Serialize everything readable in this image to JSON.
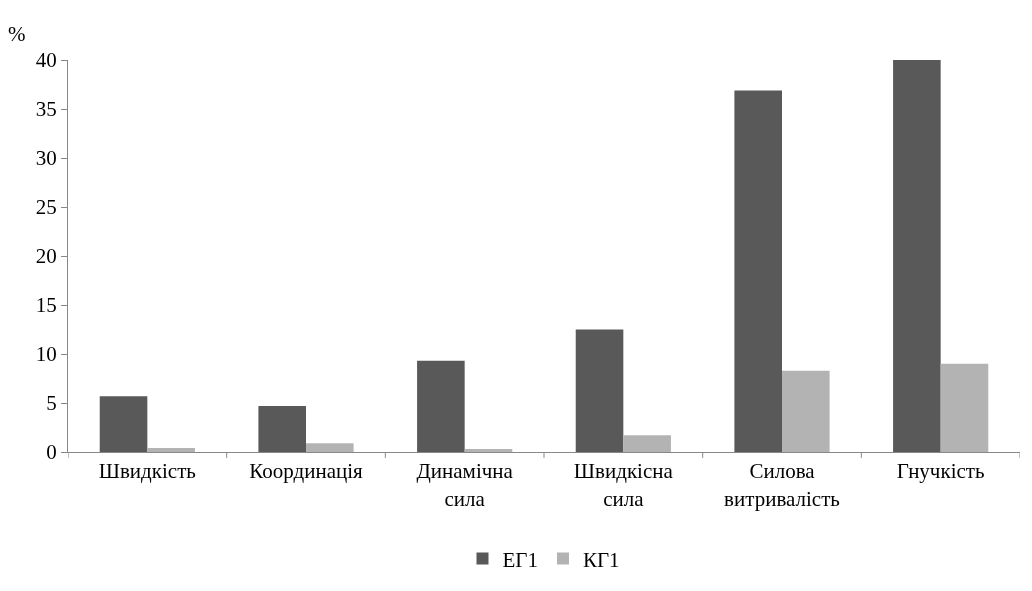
{
  "chart_data": {
    "type": "bar",
    "ylabel": "%",
    "categories": [
      "Швидкість",
      "Координація",
      "Динамічна сила",
      "Швидкісна сила",
      "Силова витривалість",
      "Гнучкість"
    ],
    "series": [
      {
        "name": "ЕГ1",
        "color": "#595959",
        "values": [
          5.7,
          4.7,
          9.3,
          12.5,
          36.9,
          40
        ]
      },
      {
        "name": "КГ1",
        "color": "#b3b3b3",
        "values": [
          0.4,
          0.9,
          0.3,
          1.7,
          8.3,
          9.0
        ]
      }
    ],
    "ylim": [
      0,
      40
    ],
    "yticks": [
      0,
      5,
      10,
      15,
      20,
      25,
      30,
      35,
      40
    ],
    "grid": false,
    "legend": "bottom"
  }
}
